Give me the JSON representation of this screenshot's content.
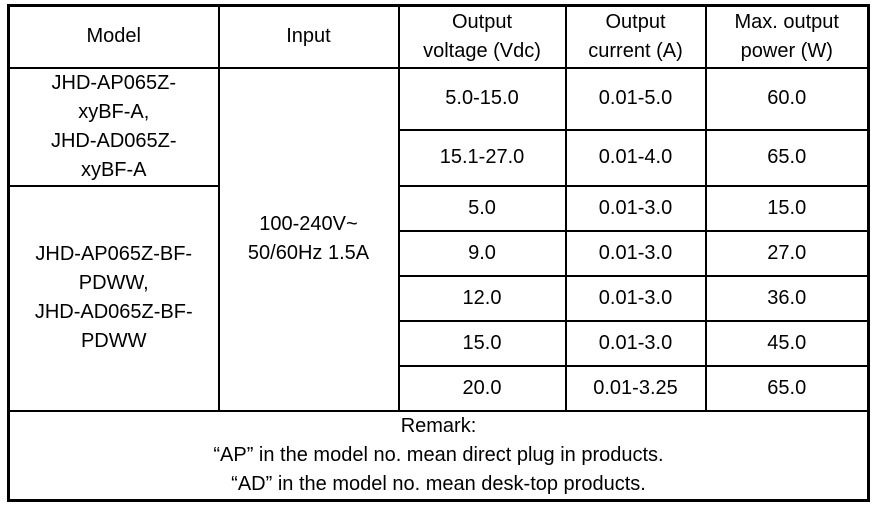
{
  "colors": {
    "border": "#000000",
    "background": "#ffffff",
    "text": "#000000"
  },
  "table": {
    "headers": {
      "model": "Model",
      "input": "Input",
      "output_voltage": "Output\nvoltage (Vdc)",
      "output_current": "Output\ncurrent (A)",
      "max_output_power": "Max. output\npower (W)"
    },
    "model_groups": [
      {
        "label": "JHD-AP065Z-\nxyBF-A,\nJHD-AD065Z-\nxyBF-A"
      },
      {
        "label": "JHD-AP065Z-BF-\nPDWW,\nJHD-AD065Z-BF-\nPDWW"
      }
    ],
    "input_value": "100-240V~\n50/60Hz 1.5A",
    "rows": [
      {
        "output_voltage": "5.0-15.0",
        "output_current": "0.01-5.0",
        "max_output_power": "60.0"
      },
      {
        "output_voltage": "15.1-27.0",
        "output_current": "0.01-4.0",
        "max_output_power": "65.0"
      },
      {
        "output_voltage": "5.0",
        "output_current": "0.01-3.0",
        "max_output_power": "15.0"
      },
      {
        "output_voltage": "9.0",
        "output_current": "0.01-3.0",
        "max_output_power": "27.0"
      },
      {
        "output_voltage": "12.0",
        "output_current": "0.01-3.0",
        "max_output_power": "36.0"
      },
      {
        "output_voltage": "15.0",
        "output_current": "0.01-3.0",
        "max_output_power": "45.0"
      },
      {
        "output_voltage": "20.0",
        "output_current": "0.01-3.25",
        "max_output_power": "65.0"
      }
    ],
    "remark": "Remark:\n“AP” in the model no. mean direct plug in products.\n“AD” in the model no. mean desk-top products."
  }
}
